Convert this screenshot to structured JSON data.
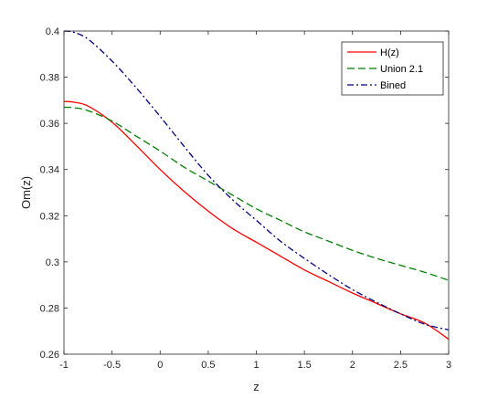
{
  "chart_data": {
    "type": "line",
    "title": "",
    "xlabel": "z",
    "ylabel": "Om(z)",
    "xlim": [
      -1,
      3
    ],
    "ylim": [
      0.26,
      0.4
    ],
    "xticks": [
      "-1",
      "-0.5",
      "0",
      "0.5",
      "1",
      "1.5",
      "2",
      "2.5",
      "3"
    ],
    "yticks": [
      "0.26",
      "0.28",
      "0.3",
      "0.32",
      "0.34",
      "0.36",
      "0.38",
      "0.4"
    ],
    "grid": false,
    "legend_position": "top-right",
    "series": [
      {
        "name": "H(z)",
        "color": "#ff0000",
        "style": "solid",
        "x": [
          -1,
          -0.9,
          -0.75,
          -0.5,
          -0.25,
          0,
          0.25,
          0.5,
          0.75,
          1,
          1.25,
          1.5,
          1.75,
          2,
          2.25,
          2.5,
          2.75,
          3
        ],
        "y": [
          0.3695,
          0.3692,
          0.3675,
          0.3605,
          0.3505,
          0.34,
          0.3305,
          0.322,
          0.3145,
          0.3085,
          0.3025,
          0.2965,
          0.2915,
          0.2865,
          0.282,
          0.2775,
          0.2735,
          0.2665
        ]
      },
      {
        "name": "Union 2.1",
        "color": "#007f00",
        "style": "dashed",
        "x": [
          -1,
          -0.9,
          -0.75,
          -0.5,
          -0.25,
          0,
          0.25,
          0.5,
          0.75,
          1,
          1.25,
          1.5,
          1.75,
          2,
          2.25,
          2.5,
          2.75,
          3
        ],
        "y": [
          0.367,
          0.3668,
          0.3655,
          0.361,
          0.3545,
          0.348,
          0.341,
          0.335,
          0.329,
          0.323,
          0.318,
          0.313,
          0.309,
          0.305,
          0.3015,
          0.2985,
          0.2955,
          0.292
        ]
      },
      {
        "name": "Bined",
        "color": "#00007f",
        "style": "dashdot",
        "x": [
          -1,
          -0.9,
          -0.75,
          -0.5,
          -0.25,
          0,
          0.25,
          0.5,
          0.75,
          1,
          1.25,
          1.5,
          1.75,
          2,
          2.25,
          2.5,
          2.75,
          3
        ],
        "y": [
          0.4,
          0.3995,
          0.3965,
          0.387,
          0.3755,
          0.363,
          0.35,
          0.3375,
          0.327,
          0.318,
          0.309,
          0.3015,
          0.2945,
          0.288,
          0.2825,
          0.2775,
          0.273,
          0.2705
        ]
      }
    ]
  }
}
